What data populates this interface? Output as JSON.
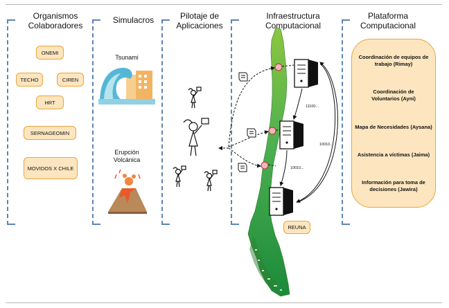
{
  "columns": {
    "organismos": "Organismos Colaboradores",
    "simulacros": "Simulacros",
    "pilotaje": "Pilotaje de Aplicaciones",
    "infraestructura": "Infraestructura Computacional",
    "plataforma": "Plataforma Computacional"
  },
  "organismos": [
    "ONEMI",
    "TECHO",
    "CIREN",
    "HRT",
    "SERNAGEOMIN",
    "MOVIDOS X CHILE"
  ],
  "simulacros": {
    "tsunami": "Tsunami",
    "erupcion": "Erupción Volcánica"
  },
  "infra": {
    "reuna": "REUNA",
    "bin1": "11100...",
    "bin2": "10010...",
    "bin3": "10010..."
  },
  "plataforma": [
    "Coordinación de equipos de trabajo (Rimay)",
    "Coordinación de Voluntarios (Ayni)",
    "Mapa de Necesidades (Aysana)",
    "Asistencia a víctimas (Jaima)",
    "Información para toma de decisiones (Jawira)"
  ]
}
